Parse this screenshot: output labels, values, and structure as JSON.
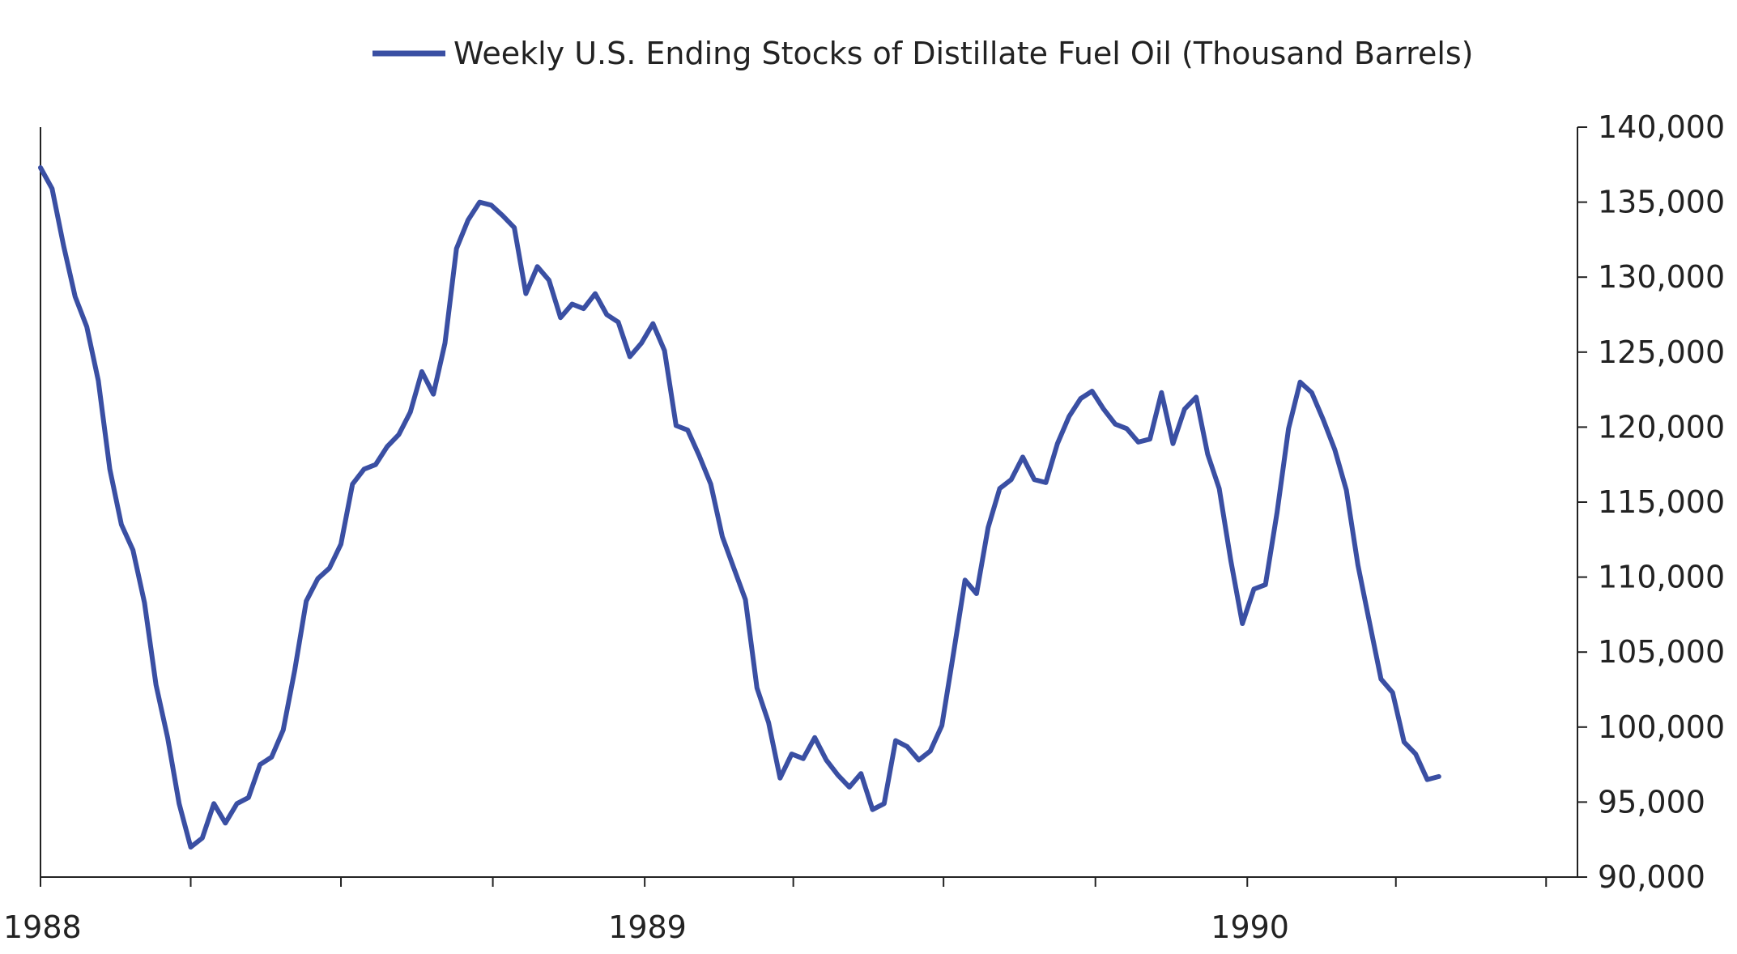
{
  "chart_data": {
    "type": "line",
    "title": "",
    "xlabel": "",
    "ylabel": "",
    "legend": {
      "position": "top-center",
      "label": "Weekly U.S. Ending Stocks of Distillate Fuel Oil  (Thousand Barrels)"
    },
    "colors": {
      "series": "#3a4fa3",
      "axis": "#222222",
      "background": "#ffffff"
    },
    "grid": false,
    "x_axis": {
      "range": [
        "1988-01-01",
        "1990-07-20"
      ],
      "major_ticks": [
        {
          "date": "1988-01-01",
          "label": "1988"
        },
        {
          "date": "1989-01-01",
          "label": "1989"
        },
        {
          "date": "1990-01-01",
          "label": "1990"
        }
      ],
      "minor_ticks": [
        "1988-04-01",
        "1988-07-01",
        "1988-10-01",
        "1989-04-01",
        "1989-07-01",
        "1989-10-01",
        "1990-04-01",
        "1990-07-01"
      ]
    },
    "y_axis": {
      "side": "right",
      "range": [
        90000,
        140000
      ],
      "ticks": [
        {
          "value": 90000,
          "label": "90,000"
        },
        {
          "value": 95000,
          "label": "95,000"
        },
        {
          "value": 100000,
          "label": "100,000"
        },
        {
          "value": 105000,
          "label": "105,000"
        },
        {
          "value": 110000,
          "label": "110,000"
        },
        {
          "value": 115000,
          "label": "115,000"
        },
        {
          "value": 120000,
          "label": "120,000"
        },
        {
          "value": 125000,
          "label": "125,000"
        },
        {
          "value": 130000,
          "label": "130,000"
        },
        {
          "value": 135000,
          "label": "135,000"
        },
        {
          "value": 140000,
          "label": "140,000"
        }
      ]
    },
    "series": [
      {
        "name": "Weekly U.S. Ending Stocks of Distillate Fuel Oil  (Thousand Barrels)",
        "points": [
          [
            "1988-01-01",
            137300
          ],
          [
            "1988-01-08",
            135900
          ],
          [
            "1988-01-15",
            132100
          ],
          [
            "1988-01-22",
            128700
          ],
          [
            "1988-01-29",
            126700
          ],
          [
            "1988-02-05",
            123100
          ],
          [
            "1988-02-12",
            117200
          ],
          [
            "1988-02-19",
            113500
          ],
          [
            "1988-02-26",
            111800
          ],
          [
            "1988-03-04",
            108300
          ],
          [
            "1988-03-11",
            102800
          ],
          [
            "1988-03-18",
            99300
          ],
          [
            "1988-03-25",
            94900
          ],
          [
            "1988-04-01",
            92000
          ],
          [
            "1988-04-08",
            92600
          ],
          [
            "1988-04-15",
            94900
          ],
          [
            "1988-04-22",
            93600
          ],
          [
            "1988-04-29",
            94900
          ],
          [
            "1988-05-06",
            95300
          ],
          [
            "1988-05-13",
            97500
          ],
          [
            "1988-05-20",
            98000
          ],
          [
            "1988-05-27",
            99800
          ],
          [
            "1988-06-03",
            103800
          ],
          [
            "1988-06-10",
            108400
          ],
          [
            "1988-06-17",
            109900
          ],
          [
            "1988-06-24",
            110600
          ],
          [
            "1988-07-01",
            112200
          ],
          [
            "1988-07-08",
            116200
          ],
          [
            "1988-07-15",
            117200
          ],
          [
            "1988-07-22",
            117500
          ],
          [
            "1988-07-29",
            118700
          ],
          [
            "1988-08-05",
            119500
          ],
          [
            "1988-08-12",
            121000
          ],
          [
            "1988-08-19",
            123700
          ],
          [
            "1988-08-26",
            122200
          ],
          [
            "1988-09-02",
            125600
          ],
          [
            "1988-09-09",
            131900
          ],
          [
            "1988-09-16",
            133800
          ],
          [
            "1988-09-23",
            135000
          ],
          [
            "1988-09-30",
            134800
          ],
          [
            "1988-10-07",
            134100
          ],
          [
            "1988-10-14",
            133300
          ],
          [
            "1988-10-21",
            128900
          ],
          [
            "1988-10-28",
            130700
          ],
          [
            "1988-11-04",
            129800
          ],
          [
            "1988-11-11",
            127300
          ],
          [
            "1988-11-18",
            128200
          ],
          [
            "1988-11-25",
            127900
          ],
          [
            "1988-12-02",
            128900
          ],
          [
            "1988-12-09",
            127500
          ],
          [
            "1988-12-16",
            127000
          ],
          [
            "1988-12-23",
            124700
          ],
          [
            "1988-12-30",
            125600
          ],
          [
            "1989-01-06",
            126900
          ],
          [
            "1989-01-13",
            125100
          ],
          [
            "1989-01-20",
            120100
          ],
          [
            "1989-01-27",
            119800
          ],
          [
            "1989-02-03",
            118100
          ],
          [
            "1989-02-10",
            116200
          ],
          [
            "1989-02-17",
            112700
          ],
          [
            "1989-02-24",
            110600
          ],
          [
            "1989-03-03",
            108500
          ],
          [
            "1989-03-10",
            102600
          ],
          [
            "1989-03-17",
            100300
          ],
          [
            "1989-03-24",
            96600
          ],
          [
            "1989-03-31",
            98200
          ],
          [
            "1989-04-07",
            97900
          ],
          [
            "1989-04-14",
            99300
          ],
          [
            "1989-04-21",
            97800
          ],
          [
            "1989-04-28",
            96800
          ],
          [
            "1989-05-05",
            96000
          ],
          [
            "1989-05-12",
            96900
          ],
          [
            "1989-05-19",
            94500
          ],
          [
            "1989-05-26",
            94900
          ],
          [
            "1989-06-02",
            99100
          ],
          [
            "1989-06-09",
            98700
          ],
          [
            "1989-06-16",
            97800
          ],
          [
            "1989-06-23",
            98400
          ],
          [
            "1989-06-30",
            100100
          ],
          [
            "1989-07-07",
            104900
          ],
          [
            "1989-07-14",
            109800
          ],
          [
            "1989-07-21",
            108900
          ],
          [
            "1989-07-28",
            113300
          ],
          [
            "1989-08-04",
            115900
          ],
          [
            "1989-08-11",
            116500
          ],
          [
            "1989-08-18",
            118000
          ],
          [
            "1989-08-25",
            116500
          ],
          [
            "1989-09-01",
            116300
          ],
          [
            "1989-09-08",
            118900
          ],
          [
            "1989-09-15",
            120700
          ],
          [
            "1989-09-22",
            121900
          ],
          [
            "1989-09-29",
            122400
          ],
          [
            "1989-10-06",
            121200
          ],
          [
            "1989-10-13",
            120200
          ],
          [
            "1989-10-20",
            119900
          ],
          [
            "1989-10-27",
            119000
          ],
          [
            "1989-11-03",
            119200
          ],
          [
            "1989-11-10",
            122300
          ],
          [
            "1989-11-17",
            118900
          ],
          [
            "1989-11-24",
            121200
          ],
          [
            "1989-12-01",
            122000
          ],
          [
            "1989-12-08",
            118200
          ],
          [
            "1989-12-15",
            115900
          ],
          [
            "1989-12-22",
            111100
          ],
          [
            "1989-12-29",
            106900
          ],
          [
            "1990-01-05",
            109200
          ],
          [
            "1990-01-12",
            109500
          ],
          [
            "1990-01-19",
            114300
          ],
          [
            "1990-01-26",
            119900
          ],
          [
            "1990-02-02",
            123000
          ],
          [
            "1990-02-09",
            122300
          ],
          [
            "1990-02-16",
            120500
          ],
          [
            "1990-02-23",
            118500
          ],
          [
            "1990-03-02",
            115800
          ],
          [
            "1990-03-09",
            110800
          ],
          [
            "1990-03-16",
            107000
          ],
          [
            "1990-03-23",
            103200
          ],
          [
            "1990-03-30",
            102300
          ],
          [
            "1990-04-06",
            99000
          ],
          [
            "1990-04-13",
            98200
          ],
          [
            "1990-04-20",
            96500
          ],
          [
            "1990-04-27",
            96700
          ]
        ]
      }
    ]
  }
}
